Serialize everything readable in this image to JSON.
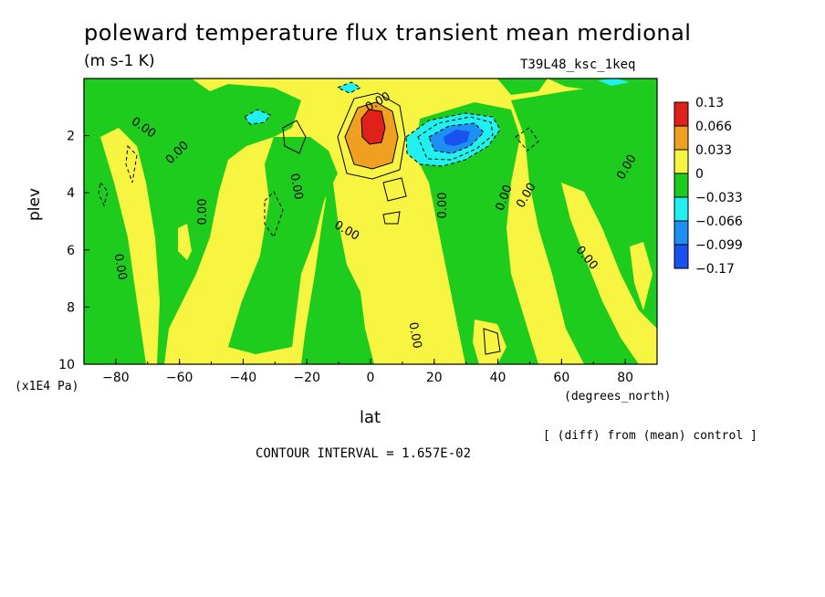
{
  "chart_data": {
    "type": "heatmap",
    "title": "poleward temperature flux transient mean merdional",
    "units": "(m s-1 K)",
    "run_id": "T39L48_ksc_1keq",
    "xlabel": "lat",
    "x_units": "(degrees_north)",
    "ylabel": "plev",
    "y_units": "(x1E4 Pa)",
    "xlim": [
      -90,
      90
    ],
    "ylim": [
      10,
      0
    ],
    "x_ticks": [
      -80,
      -60,
      -40,
      -20,
      0,
      20,
      40,
      60,
      80
    ],
    "x_tick_labels": [
      "-80",
      "-60",
      "-40",
      "-20",
      "0",
      "20",
      "40",
      "60",
      "80"
    ],
    "y_ticks": [
      2,
      4,
      6,
      8,
      10
    ],
    "y_tick_labels": [
      "2",
      "4",
      "6",
      "8",
      "10"
    ],
    "note": "[ (diff) from (mean) control ]",
    "contour_interval": "CONTOUR INTERVAL = 1.657E-02",
    "contour_labels": [
      "0.00"
    ],
    "legend": {
      "position": "right",
      "boundaries": [
        "0.13",
        "0.066",
        "0.033",
        "0",
        "-0.033",
        "-0.066",
        "-0.099",
        "-0.17"
      ],
      "colors": [
        "#e0201a",
        "#f0a020",
        "#f7f542",
        "#1ecc1e",
        "#20f0ee",
        "#1d90f5",
        "#1a50f0"
      ]
    },
    "features": [
      {
        "kind": "positive maximum",
        "lat": 0,
        "plev": 1.8,
        "value": 0.13
      },
      {
        "kind": "negative minimum",
        "lat": 25,
        "plev": 2.2,
        "value": -0.17
      }
    ]
  }
}
